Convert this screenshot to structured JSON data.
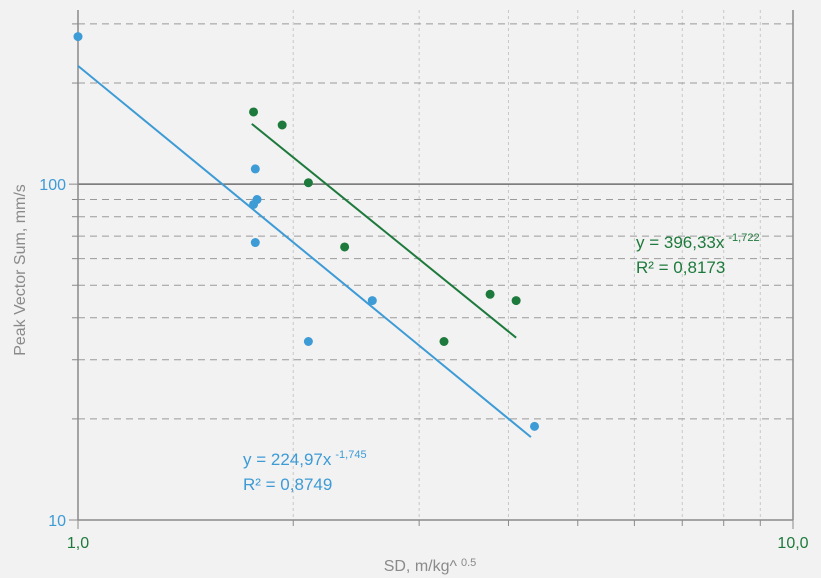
{
  "chart_data": {
    "type": "scatter",
    "x_scale": "log",
    "y_scale": "log",
    "xlim": [
      1,
      10
    ],
    "ylim": [
      10,
      330
    ],
    "xlabel": "SD, m/kg^",
    "xlabel_sup": "0.5",
    "ylabel": "Peak Vector Sum, mm/s",
    "x_ticks": [
      {
        "value": 1,
        "label": "1,0"
      },
      {
        "value": 10,
        "label": "10,0"
      }
    ],
    "y_ticks": [
      {
        "value": 10,
        "label": "10"
      },
      {
        "value": 100,
        "label": "100"
      }
    ],
    "grid": true,
    "series": [
      {
        "color": "#3d9bd6",
        "points": [
          {
            "x": 1.0,
            "y": 275
          },
          {
            "x": 1.77,
            "y": 111
          },
          {
            "x": 1.78,
            "y": 90
          },
          {
            "x": 1.76,
            "y": 87
          },
          {
            "x": 1.77,
            "y": 67
          },
          {
            "x": 2.58,
            "y": 45
          },
          {
            "x": 2.1,
            "y": 34
          },
          {
            "x": 4.35,
            "y": 19
          }
        ],
        "trendline": {
          "a": 224.97,
          "b": -1.745,
          "x_range": [
            1.0,
            4.3
          ]
        },
        "equation": "y = 224,97x",
        "exponent": "-1,745",
        "r2": "R² = 0,8749"
      },
      {
        "color": "#1e7a3c",
        "points": [
          {
            "x": 1.76,
            "y": 164
          },
          {
            "x": 1.93,
            "y": 150
          },
          {
            "x": 2.1,
            "y": 101
          },
          {
            "x": 2.36,
            "y": 65
          },
          {
            "x": 3.25,
            "y": 34
          },
          {
            "x": 3.77,
            "y": 47
          },
          {
            "x": 4.1,
            "y": 45
          }
        ],
        "trendline": {
          "a": 396.33,
          "b": -1.722,
          "x_range": [
            1.75,
            4.1
          ]
        },
        "equation": "y = 396,33x",
        "exponent": "-1,722",
        "r2": "R² = 0,8173"
      }
    ]
  }
}
